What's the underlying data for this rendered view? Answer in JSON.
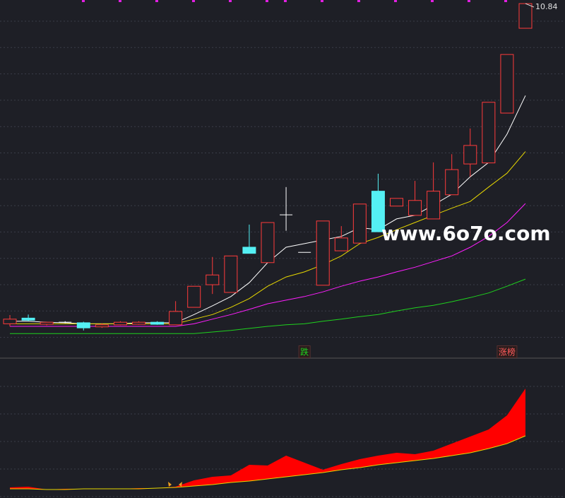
{
  "chart_data": {
    "type": "candlestick",
    "open": [
      4.61,
      4.72,
      4.6,
      4.64,
      4.63,
      4.55,
      4.59,
      4.6,
      4.64,
      4.59,
      4.93,
      5.37,
      5.22,
      6.1,
      5.8,
      6.73,
      6.0,
      5.36,
      6.03,
      6.18,
      7.19,
      6.9,
      6.72,
      6.65,
      7.12,
      7.72,
      7.74,
      8.71,
      10.36
    ],
    "high": [
      4.78,
      4.79,
      4.65,
      4.66,
      4.65,
      4.62,
      4.66,
      4.66,
      4.66,
      5.05,
      5.34,
      5.91,
      5.93,
      6.54,
      6.58,
      7.27,
      6.0,
      6.61,
      6.51,
      6.94,
      7.53,
      7.05,
      7.39,
      7.75,
      7.91,
      8.41,
      8.92,
      9.85,
      10.84
    ],
    "low": [
      4.56,
      4.66,
      4.58,
      4.62,
      4.48,
      4.53,
      4.58,
      4.59,
      4.59,
      4.59,
      4.93,
      5.19,
      5.22,
      5.98,
      5.8,
      6.42,
      6.0,
      5.36,
      6.03,
      6.18,
      6.4,
      6.9,
      6.72,
      6.65,
      7.12,
      7.47,
      7.74,
      8.71,
      10.36
    ],
    "close": [
      4.7,
      4.68,
      4.64,
      4.64,
      4.53,
      4.59,
      4.64,
      4.64,
      4.6,
      4.85,
      5.34,
      5.56,
      5.93,
      5.98,
      6.58,
      6.73,
      6.0,
      6.61,
      6.28,
      6.94,
      6.4,
      7.05,
      7.01,
      7.19,
      7.61,
      8.08,
      8.92,
      9.85,
      10.84
    ],
    "up_color": "#ff3b3b",
    "down_color": "#54f0f4",
    "flat_color": "#ffffff",
    "ylim": [
      4.34,
      10.91
    ],
    "series": [
      {
        "color": "#ffffff",
        "values": [
          4.66,
          4.66,
          4.64,
          4.63,
          4.61,
          4.61,
          4.61,
          4.63,
          4.63,
          4.63,
          4.79,
          4.96,
          5.14,
          5.41,
          5.8,
          6.1,
          6.17,
          6.24,
          6.31,
          6.48,
          6.44,
          6.65,
          6.72,
          6.92,
          7.13,
          7.47,
          7.75,
          8.3,
          9.05
        ]
      },
      {
        "color": "#e8d800",
        "values": [
          4.61,
          4.61,
          4.61,
          4.61,
          4.61,
          4.61,
          4.61,
          4.61,
          4.61,
          4.61,
          4.7,
          4.79,
          4.93,
          5.1,
          5.34,
          5.52,
          5.62,
          5.76,
          5.93,
          6.17,
          6.29,
          6.44,
          6.58,
          6.72,
          6.86,
          6.99,
          7.27,
          7.54,
          7.96
        ]
      },
      {
        "color": "#ff1eff",
        "values": [
          4.56,
          4.56,
          4.56,
          4.56,
          4.56,
          4.56,
          4.56,
          4.56,
          4.56,
          4.56,
          4.61,
          4.7,
          4.79,
          4.89,
          5.0,
          5.07,
          5.14,
          5.23,
          5.34,
          5.44,
          5.52,
          5.62,
          5.71,
          5.82,
          5.93,
          6.1,
          6.31,
          6.58,
          6.95
        ]
      },
      {
        "color": "#1ed21e",
        "values": [
          4.42,
          4.42,
          4.42,
          4.42,
          4.42,
          4.42,
          4.42,
          4.42,
          4.42,
          4.42,
          4.42,
          4.45,
          4.48,
          4.52,
          4.56,
          4.59,
          4.61,
          4.66,
          4.7,
          4.75,
          4.79,
          4.86,
          4.92,
          4.97,
          5.04,
          5.12,
          5.21,
          5.34,
          5.48
        ]
      }
    ],
    "annotations": [
      {
        "text": "跌",
        "index": 16,
        "color": "#1ed21e"
      },
      {
        "text": "涨榜",
        "index": 27,
        "color": "#ff5a5a"
      }
    ],
    "watermark": "www.6o7o.com",
    "indicator": {
      "ylim": [
        0,
        195
      ],
      "fill": "#ff0000",
      "line_color": "#e8d800",
      "upper": [
        15,
        16,
        12,
        13,
        13,
        13,
        13,
        14,
        14,
        16,
        25,
        30,
        32,
        47,
        46,
        60,
        50,
        40,
        48,
        55,
        60,
        64,
        62,
        67,
        77,
        87,
        97,
        117,
        155
      ],
      "lower": [
        13,
        13,
        12,
        12,
        13,
        13,
        13,
        13,
        14,
        15,
        17,
        19,
        22,
        24,
        27,
        30,
        33,
        36,
        40,
        43,
        47,
        50,
        53,
        56,
        60,
        64,
        70,
        77,
        88
      ]
    }
  }
}
